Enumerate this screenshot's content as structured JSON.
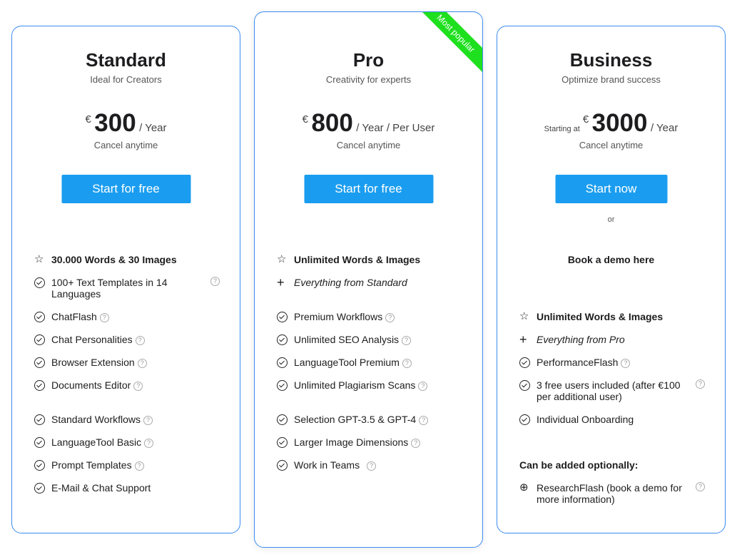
{
  "plans": [
    {
      "title": "Standard",
      "subtitle": "Ideal for Creators",
      "currency": "€",
      "price": "300",
      "period": "/  Year",
      "cancel": "Cancel anytime",
      "button": "Start for free",
      "features": [
        "30.000 Words & 30 Images",
        "100+ Text Templates in 14 Languages",
        "ChatFlash",
        "Chat Personalities",
        "Browser Extension",
        "Documents Editor",
        "Standard Workflows",
        "LanguageTool Basic",
        "Prompt Templates",
        "E-Mail & Chat Support"
      ]
    },
    {
      "title": "Pro",
      "subtitle": "Creativity for experts",
      "currency": "€",
      "price": "800",
      "period": "/  Year / Per User",
      "cancel": "Cancel anytime",
      "button": "Start for free",
      "badge": "Most popular",
      "features": [
        "Unlimited Words & Images",
        "Everything from Standard",
        "Premium Workflows",
        "Unlimited SEO Analysis",
        "LanguageTool Premium",
        "Unlimited Plagiarism Scans",
        "Selection GPT-3.5 & GPT-4",
        "Larger Image Dimensions",
        "Work in Teams"
      ]
    },
    {
      "title": "Business",
      "subtitle": "Optimize brand success",
      "prefix": "Starting at",
      "currency": "€",
      "price": "3000",
      "period": "/  Year",
      "cancel": "Cancel anytime",
      "button": "Start now",
      "or": "or",
      "demo": "Book a demo here",
      "features": [
        "Unlimited Words & Images",
        "Everything from Pro",
        "PerformanceFlash",
        "3 free users included (after €100 per additional user)",
        "Individual Onboarding"
      ],
      "optional_heading": "Can be added optionally:",
      "optional": [
        "ResearchFlash (book a demo for more information)"
      ]
    }
  ],
  "colors": {
    "accent": "#1a9df0",
    "border": "#3b8cf0",
    "badge": "#1ee01e"
  }
}
